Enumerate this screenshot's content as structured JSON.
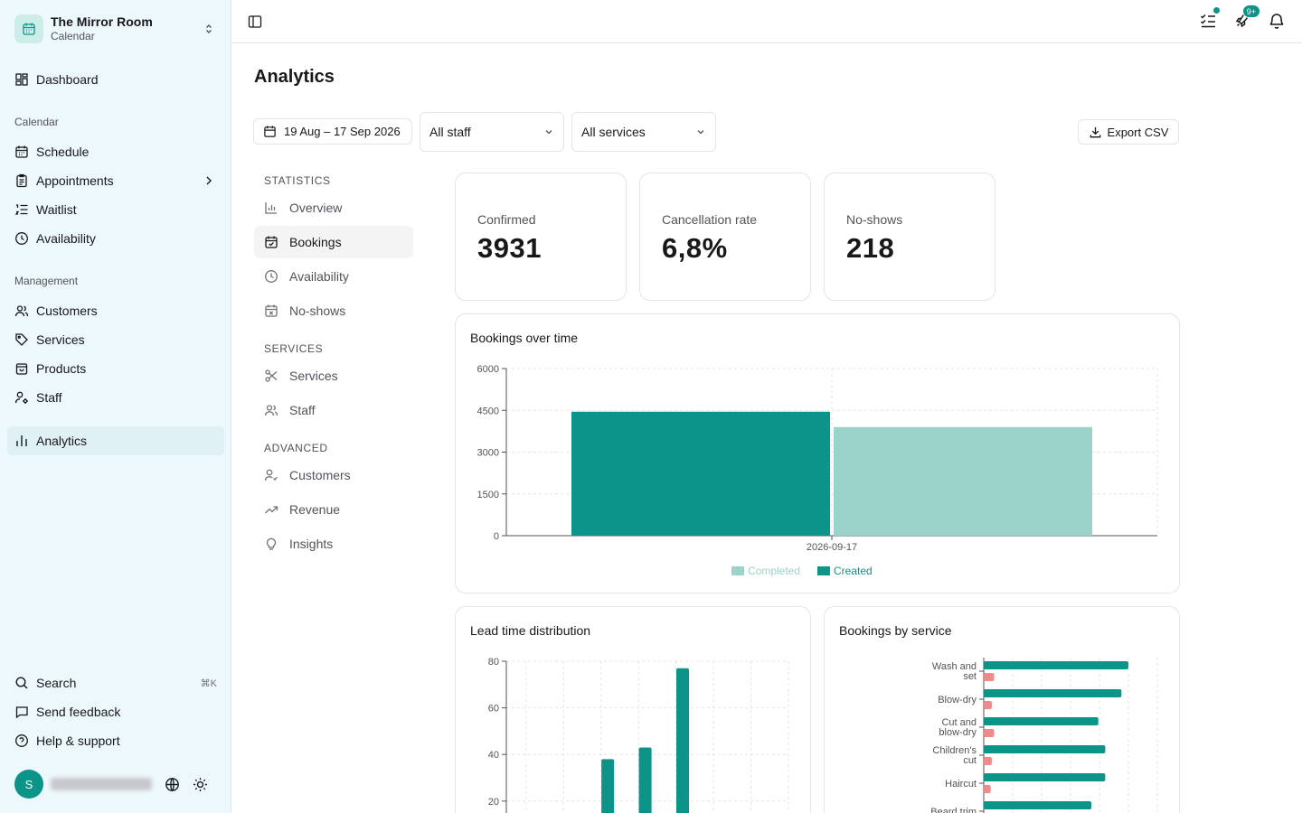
{
  "brand": {
    "title": "The Mirror Room",
    "subtitle": "Calendar"
  },
  "sidebar": {
    "dashboard": "Dashboard",
    "calendar_section": "Calendar",
    "calendar_items": [
      "Schedule",
      "Appointments",
      "Waitlist",
      "Availability"
    ],
    "management_section": "Management",
    "management_items": [
      "Customers",
      "Services",
      "Products",
      "Staff"
    ],
    "analytics": "Analytics",
    "search": "Search",
    "search_shortcut": "⌘K",
    "feedback": "Send feedback",
    "help": "Help & support",
    "avatar_initial": "S"
  },
  "topbar": {
    "notifications_badge": "9+"
  },
  "page": {
    "title": "Analytics"
  },
  "filters": {
    "date_range": "19 Aug – 17 Sep 2026",
    "staff": "All staff",
    "services": "All services",
    "export": "Export CSV"
  },
  "subnav": {
    "statistics_heading": "STATISTICS",
    "statistics": [
      "Overview",
      "Bookings",
      "Availability",
      "No-shows"
    ],
    "services_heading": "SERVICES",
    "services": [
      "Services",
      "Staff"
    ],
    "advanced_heading": "ADVANCED",
    "advanced": [
      "Customers",
      "Revenue",
      "Insights"
    ],
    "active": "Bookings"
  },
  "stats": [
    {
      "label": "Confirmed",
      "value": "3931"
    },
    {
      "label": "Cancellation rate",
      "value": "6,8%"
    },
    {
      "label": "No-shows",
      "value": "218"
    }
  ],
  "colors": {
    "accent": "#0d9488",
    "accent_light": "#99d3c9",
    "cancel": "#ef8a8a",
    "sidebar_bg": "#ecf8fb"
  },
  "chart_data": [
    {
      "type": "bar",
      "title": "Bookings over time",
      "categories": [
        "2026-09-17"
      ],
      "series": [
        {
          "name": "Created",
          "values": [
            4450
          ],
          "color": "#0d9488"
        },
        {
          "name": "Completed",
          "values": [
            3900
          ],
          "color": "#99d3c9"
        }
      ],
      "yticks": [
        0,
        1500,
        3000,
        4500,
        6000
      ],
      "ylim": [
        0,
        6000
      ],
      "legend": "bottom",
      "grid": true
    },
    {
      "type": "bar",
      "title": "Lead time distribution",
      "values": [
        0,
        1,
        38,
        43,
        77,
        0,
        0
      ],
      "yticks": [
        20,
        40,
        60,
        80
      ],
      "ylim": [
        0,
        80
      ],
      "grid": true
    },
    {
      "type": "bar",
      "orientation": "horizontal",
      "title": "Bookings by service",
      "categories": [
        "Wash and set",
        "Blow-dry",
        "Cut and blow-dry",
        "Children's cut",
        "Haircut",
        "Beard trim"
      ],
      "series": [
        {
          "values": [
            125,
            119,
            99,
            105,
            105,
            93
          ],
          "color": "#0d9488"
        },
        {
          "values": [
            9,
            7,
            9,
            7,
            6,
            6
          ],
          "color": "#ef8a8a"
        }
      ],
      "xlim": [
        0,
        150
      ],
      "grid": true
    }
  ]
}
